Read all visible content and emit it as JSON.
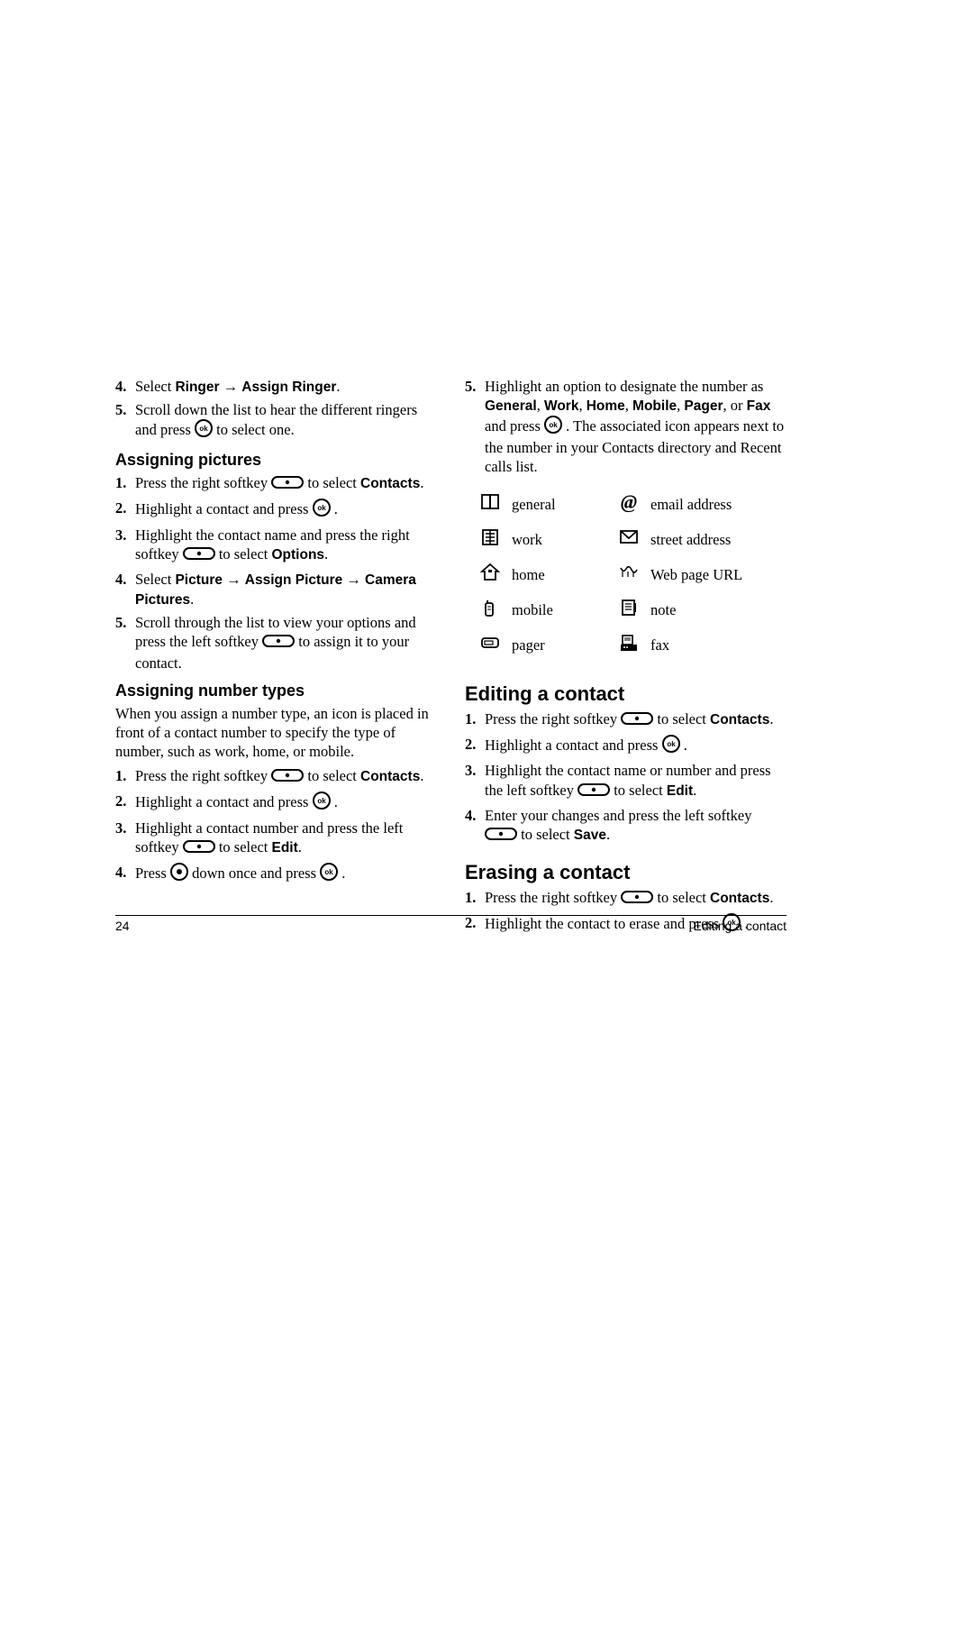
{
  "left": {
    "pre_list": [
      {
        "num": "4.",
        "parts": [
          "Select ",
          {
            "b": "Ringer"
          },
          " ",
          {
            "arrow": "→"
          },
          " ",
          {
            "b": "Assign Ringer"
          },
          "."
        ]
      },
      {
        "num": "5.",
        "parts": [
          "Scroll down the list to hear the different ringers and press ",
          {
            "icon": "ok"
          },
          " to select one."
        ]
      }
    ],
    "h_pictures": "Assigning pictures",
    "pictures_list": [
      {
        "num": "1.",
        "parts": [
          "Press the right softkey ",
          {
            "icon": "softkey"
          },
          " to select ",
          {
            "b": "Contacts"
          },
          "."
        ]
      },
      {
        "num": "2.",
        "parts": [
          "Highlight a contact and press ",
          {
            "icon": "ok"
          },
          " ."
        ]
      },
      {
        "num": "3.",
        "parts": [
          "Highlight the contact name and press the right softkey ",
          {
            "icon": "softkey"
          },
          " to select ",
          {
            "b": "Options"
          },
          "."
        ]
      },
      {
        "num": "4.",
        "parts": [
          "Select ",
          {
            "b": "Picture"
          },
          " ",
          {
            "arrow": "→"
          },
          " ",
          {
            "b": "Assign Picture"
          },
          " ",
          {
            "arrow": "→"
          },
          " ",
          {
            "b": "Camera Pictures"
          },
          "."
        ]
      },
      {
        "num": "5.",
        "parts": [
          "Scroll through the list to view your options and press the left softkey ",
          {
            "icon": "softkey"
          },
          " to assign it to your contact."
        ]
      }
    ],
    "h_numtypes": "Assigning number types",
    "numtypes_intro": "When you assign a number type, an icon is placed in front of a contact number to specify the type of number, such as work, home, or mobile.",
    "numtypes_list": [
      {
        "num": "1.",
        "parts": [
          "Press the right softkey ",
          {
            "icon": "softkey"
          },
          " to select ",
          {
            "b": "Contacts"
          },
          "."
        ]
      },
      {
        "num": "2.",
        "parts": [
          "Highlight a contact and press ",
          {
            "icon": "ok"
          },
          " ."
        ]
      },
      {
        "num": "3.",
        "parts": [
          "Highlight a contact number and press the left softkey ",
          {
            "icon": "softkey"
          },
          " to select ",
          {
            "b": "Edit"
          },
          "."
        ]
      },
      {
        "num": "4.",
        "parts": [
          "Press ",
          {
            "icon": "nav"
          },
          " down once and press ",
          {
            "icon": "ok"
          },
          " ."
        ]
      }
    ]
  },
  "right": {
    "cont_list": [
      {
        "num": "5.",
        "parts": [
          "Highlight an option to designate the number as ",
          {
            "b": "General"
          },
          ", ",
          {
            "b": "Work"
          },
          ", ",
          {
            "b": "Home"
          },
          ", ",
          {
            "b": "Mobile"
          },
          ", ",
          {
            "b": "Pager"
          },
          ", or ",
          {
            "b": "Fax"
          },
          " and press ",
          {
            "icon": "ok"
          },
          " . The associated icon appears next to the number in your Contacts directory and Recent calls list."
        ]
      }
    ],
    "icon_table": [
      {
        "icon1": "general",
        "label1": "general",
        "icon2": "email",
        "label2": "email address"
      },
      {
        "icon1": "work",
        "label1": "work",
        "icon2": "street",
        "label2": "street address"
      },
      {
        "icon1": "home",
        "label1": "home",
        "icon2": "web",
        "label2": "Web page URL"
      },
      {
        "icon1": "mobile",
        "label1": "mobile",
        "icon2": "note",
        "label2": "note"
      },
      {
        "icon1": "pager",
        "label1": "pager",
        "icon2": "fax",
        "label2": "fax"
      }
    ],
    "h_edit": "Editing a contact",
    "edit_list": [
      {
        "num": "1.",
        "parts": [
          "Press the right softkey ",
          {
            "icon": "softkey"
          },
          " to select ",
          {
            "b": "Contacts"
          },
          "."
        ]
      },
      {
        "num": "2.",
        "parts": [
          "Highlight a contact and press ",
          {
            "icon": "ok"
          },
          " ."
        ]
      },
      {
        "num": "3.",
        "parts": [
          "Highlight the contact name or number and press the left softkey ",
          {
            "icon": "softkey"
          },
          " to select ",
          {
            "b": "Edit"
          },
          "."
        ]
      },
      {
        "num": "4.",
        "parts": [
          "Enter your changes and press the left softkey ",
          {
            "icon": "softkey"
          },
          " to select ",
          {
            "b": "Save"
          },
          "."
        ]
      }
    ],
    "h_erase": "Erasing a contact",
    "erase_list": [
      {
        "num": "1.",
        "parts": [
          "Press the right softkey ",
          {
            "icon": "softkey"
          },
          " to select ",
          {
            "b": "Contacts"
          },
          "."
        ]
      },
      {
        "num": "2.",
        "parts": [
          "Highlight the contact to erase and press ",
          {
            "icon": "ok"
          },
          " ."
        ]
      }
    ]
  },
  "footer": {
    "page": "24",
    "section": "Editing a contact"
  }
}
